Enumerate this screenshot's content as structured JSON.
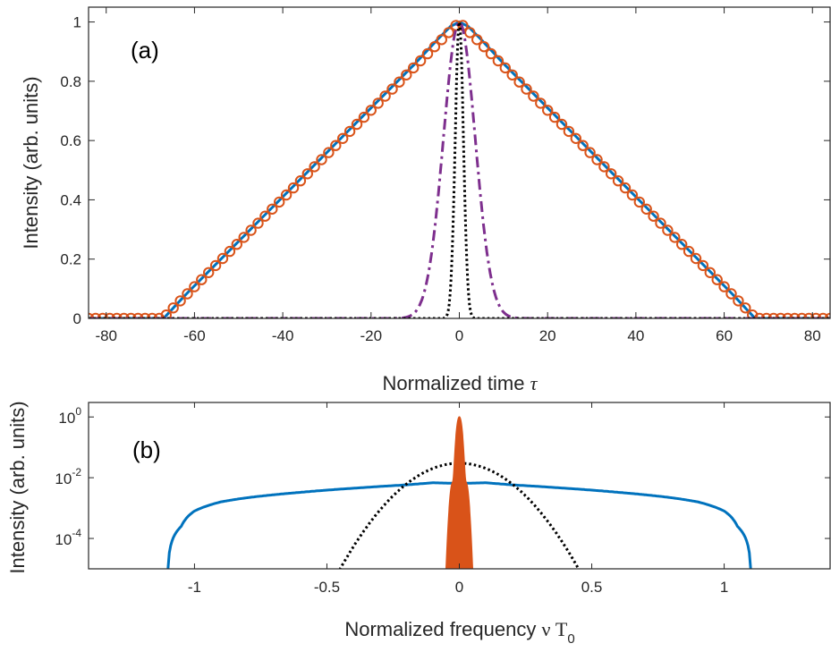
{
  "chart_data": [
    {
      "type": "line",
      "panel_label": "(a)",
      "xlabel": "Normalized time",
      "xlabel_symbol": "τ",
      "ylabel": "Intensity (arb. units)",
      "xlim": [
        -84,
        84
      ],
      "ylim": [
        0,
        1.05
      ],
      "xticks": [
        "-80",
        "-60",
        "-40",
        "-20",
        "0",
        "20",
        "40",
        "60",
        "80"
      ],
      "yticks": [
        "0",
        "0.2",
        "0.4",
        "0.6",
        "0.8",
        "1"
      ],
      "colors": {
        "blue": "#0072BD",
        "orange": "#D95319",
        "purple": "#7E2F8E",
        "black": "#000000"
      },
      "series": [
        {
          "style": "solid",
          "color": "#0072BD",
          "x": [
            -84,
            -67,
            -62,
            -40,
            -20,
            -10,
            -5,
            -2,
            0,
            2,
            5,
            10,
            20,
            40,
            62,
            67,
            84
          ],
          "y": [
            0,
            0,
            0.08,
            0.41,
            0.71,
            0.86,
            0.94,
            0.985,
            1.0,
            0.985,
            0.94,
            0.86,
            0.71,
            0.41,
            0.08,
            0,
            0
          ]
        },
        {
          "style": "circles",
          "color": "#D95319",
          "x": [
            -84,
            -67,
            -66.5,
            0,
            66.5,
            67,
            84
          ],
          "y": [
            0,
            0,
            0.01,
            1.0,
            0.01,
            0,
            0
          ]
        },
        {
          "style": "dash-dot",
          "color": "#7E2F8E",
          "gaussian_fwhm": 8.5,
          "peak": 1.0
        },
        {
          "style": "dotted",
          "color": "#000000",
          "gaussian_fwhm": 2.2,
          "peak": 1.0
        }
      ]
    },
    {
      "type": "line",
      "panel_label": "(b)",
      "xlabel": "Normalized frequency",
      "xlabel_symbol": "ν T",
      "xlabel_subscript": "0",
      "ylabel": "Intensity (arb. units)",
      "xlim": [
        -1.4,
        1.4
      ],
      "yscale": "log",
      "ylim": [
        1e-05,
        3
      ],
      "xticks": [
        "-1",
        "-0.5",
        "0",
        "0.5",
        "1"
      ],
      "yticks_base": "10",
      "yticks_exponents": [
        "0",
        "-2",
        "-4"
      ],
      "series": [
        {
          "style": "solid",
          "color": "#0072BD",
          "x": [
            -1.1,
            -1.05,
            -1.0,
            -0.95,
            -0.9,
            -0.8,
            -0.6,
            -0.4,
            -0.2,
            -0.1,
            0,
            0.1,
            0.2,
            0.4,
            0.6,
            0.8,
            0.9,
            0.95,
            1.0,
            1.05,
            1.1
          ],
          "y": [
            1e-05,
            0.00025,
            0.0008,
            0.0012,
            0.0016,
            0.0022,
            0.0033,
            0.0045,
            0.0058,
            0.0068,
            0.0065,
            0.0068,
            0.0058,
            0.0045,
            0.0033,
            0.0022,
            0.0016,
            0.0012,
            0.0008,
            0.00025,
            1e-05
          ]
        },
        {
          "style": "dotted",
          "color": "#000000",
          "gaussian_peak": 0.03,
          "half_width_at_floor": 0.45,
          "floor": 1e-05
        },
        {
          "style": "filled-spike",
          "color": "#D95319",
          "peak": 1.0,
          "half_width_at_floor": 0.05,
          "floor": 1e-05
        }
      ]
    }
  ]
}
